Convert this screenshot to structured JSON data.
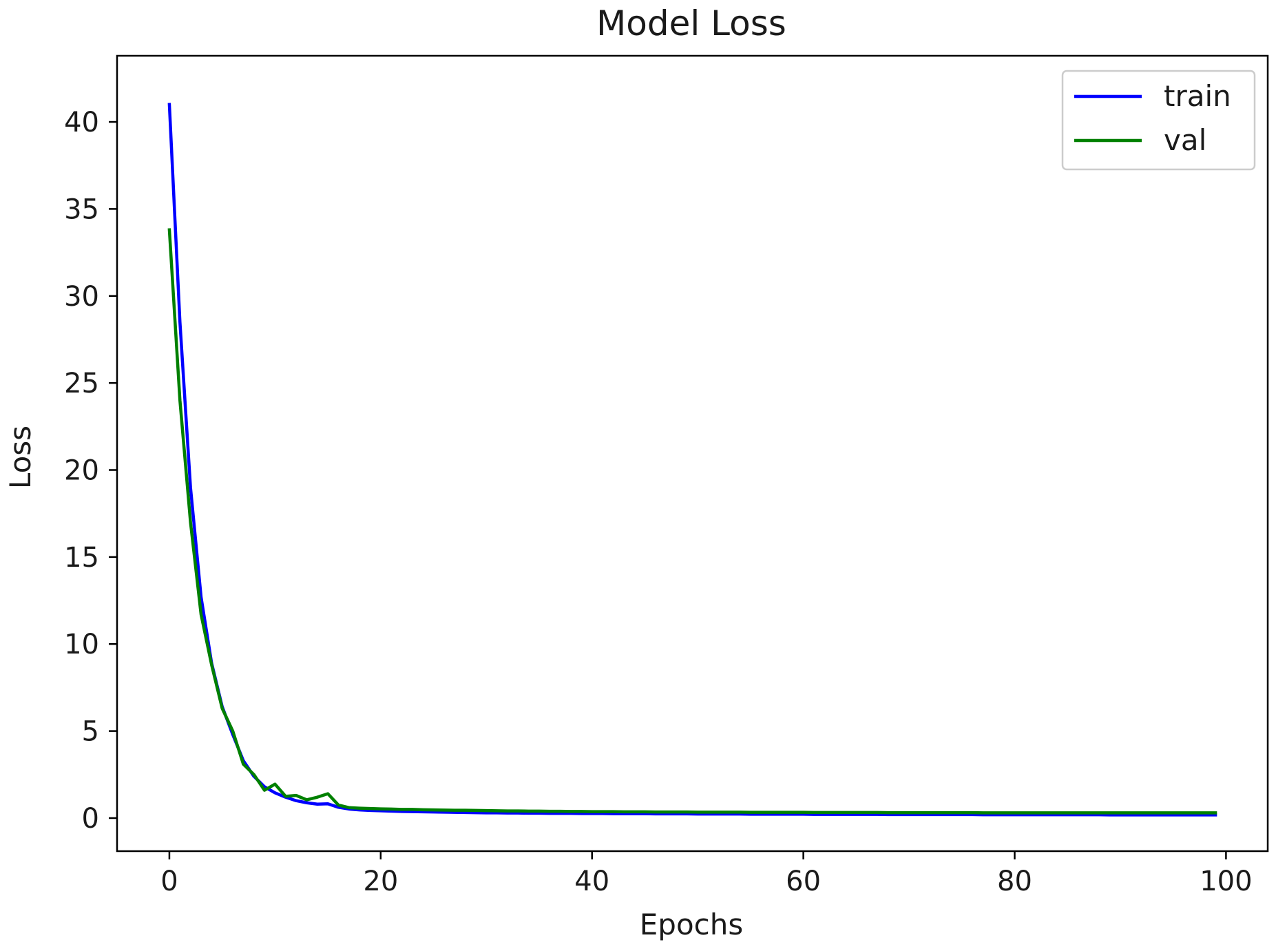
{
  "chart_data": {
    "type": "line",
    "title": "Model Loss",
    "xlabel": "Epochs",
    "ylabel": "Loss",
    "xlim": [
      -4.95,
      103.95
    ],
    "ylim": [
      -1.9,
      43.8
    ],
    "xticks": [
      0,
      20,
      40,
      60,
      80,
      100
    ],
    "yticks": [
      0,
      5,
      10,
      15,
      20,
      25,
      30,
      35,
      40
    ],
    "grid": false,
    "legend": {
      "position": "top-right",
      "entries": [
        "train",
        "val"
      ]
    },
    "x": [
      0,
      1,
      2,
      3,
      4,
      5,
      6,
      7,
      8,
      9,
      10,
      11,
      12,
      13,
      14,
      15,
      16,
      17,
      18,
      19,
      20,
      21,
      22,
      23,
      24,
      25,
      26,
      27,
      28,
      29,
      30,
      31,
      32,
      33,
      34,
      35,
      36,
      37,
      38,
      39,
      40,
      41,
      42,
      43,
      44,
      45,
      46,
      47,
      48,
      49,
      50,
      51,
      52,
      53,
      54,
      55,
      56,
      57,
      58,
      59,
      60,
      61,
      62,
      63,
      64,
      65,
      66,
      67,
      68,
      69,
      70,
      71,
      72,
      73,
      74,
      75,
      76,
      77,
      78,
      79,
      80,
      81,
      82,
      83,
      84,
      85,
      86,
      87,
      88,
      89,
      90,
      91,
      92,
      93,
      94,
      95,
      96,
      97,
      98,
      99
    ],
    "series": [
      {
        "name": "train",
        "color": "#0000ff",
        "values": [
          41.0,
          28.5,
          19.0,
          12.7,
          8.9,
          6.4,
          4.8,
          3.3,
          2.4,
          1.8,
          1.45,
          1.2,
          1.0,
          0.88,
          0.8,
          0.82,
          0.62,
          0.52,
          0.47,
          0.44,
          0.42,
          0.4,
          0.38,
          0.37,
          0.36,
          0.35,
          0.34,
          0.33,
          0.32,
          0.31,
          0.3,
          0.3,
          0.29,
          0.29,
          0.28,
          0.28,
          0.27,
          0.27,
          0.27,
          0.26,
          0.26,
          0.26,
          0.25,
          0.25,
          0.25,
          0.25,
          0.24,
          0.24,
          0.24,
          0.24,
          0.23,
          0.23,
          0.23,
          0.23,
          0.23,
          0.22,
          0.22,
          0.22,
          0.22,
          0.22,
          0.22,
          0.21,
          0.21,
          0.21,
          0.21,
          0.21,
          0.21,
          0.21,
          0.2,
          0.2,
          0.2,
          0.2,
          0.2,
          0.2,
          0.2,
          0.2,
          0.2,
          0.19,
          0.19,
          0.19,
          0.19,
          0.19,
          0.19,
          0.19,
          0.19,
          0.19,
          0.19,
          0.19,
          0.19,
          0.18,
          0.18,
          0.18,
          0.18,
          0.18,
          0.18,
          0.18,
          0.18,
          0.18,
          0.18,
          0.18
        ]
      },
      {
        "name": "val",
        "color": "#008000",
        "values": [
          33.8,
          24.0,
          17.0,
          11.7,
          8.8,
          6.3,
          5.0,
          3.1,
          2.5,
          1.6,
          1.95,
          1.25,
          1.3,
          1.05,
          1.2,
          1.4,
          0.75,
          0.6,
          0.57,
          0.55,
          0.53,
          0.52,
          0.5,
          0.5,
          0.48,
          0.47,
          0.46,
          0.45,
          0.45,
          0.44,
          0.43,
          0.42,
          0.41,
          0.41,
          0.4,
          0.4,
          0.39,
          0.39,
          0.38,
          0.38,
          0.37,
          0.37,
          0.37,
          0.36,
          0.36,
          0.36,
          0.35,
          0.35,
          0.35,
          0.35,
          0.34,
          0.34,
          0.34,
          0.34,
          0.34,
          0.33,
          0.33,
          0.33,
          0.33,
          0.33,
          0.33,
          0.32,
          0.32,
          0.32,
          0.32,
          0.32,
          0.32,
          0.32,
          0.31,
          0.31,
          0.31,
          0.31,
          0.31,
          0.31,
          0.31,
          0.31,
          0.31,
          0.3,
          0.3,
          0.3,
          0.3,
          0.3,
          0.3,
          0.3,
          0.3,
          0.3,
          0.3,
          0.3,
          0.3,
          0.3,
          0.3,
          0.3,
          0.3,
          0.3,
          0.3,
          0.3,
          0.3,
          0.3,
          0.3,
          0.3
        ]
      }
    ]
  }
}
